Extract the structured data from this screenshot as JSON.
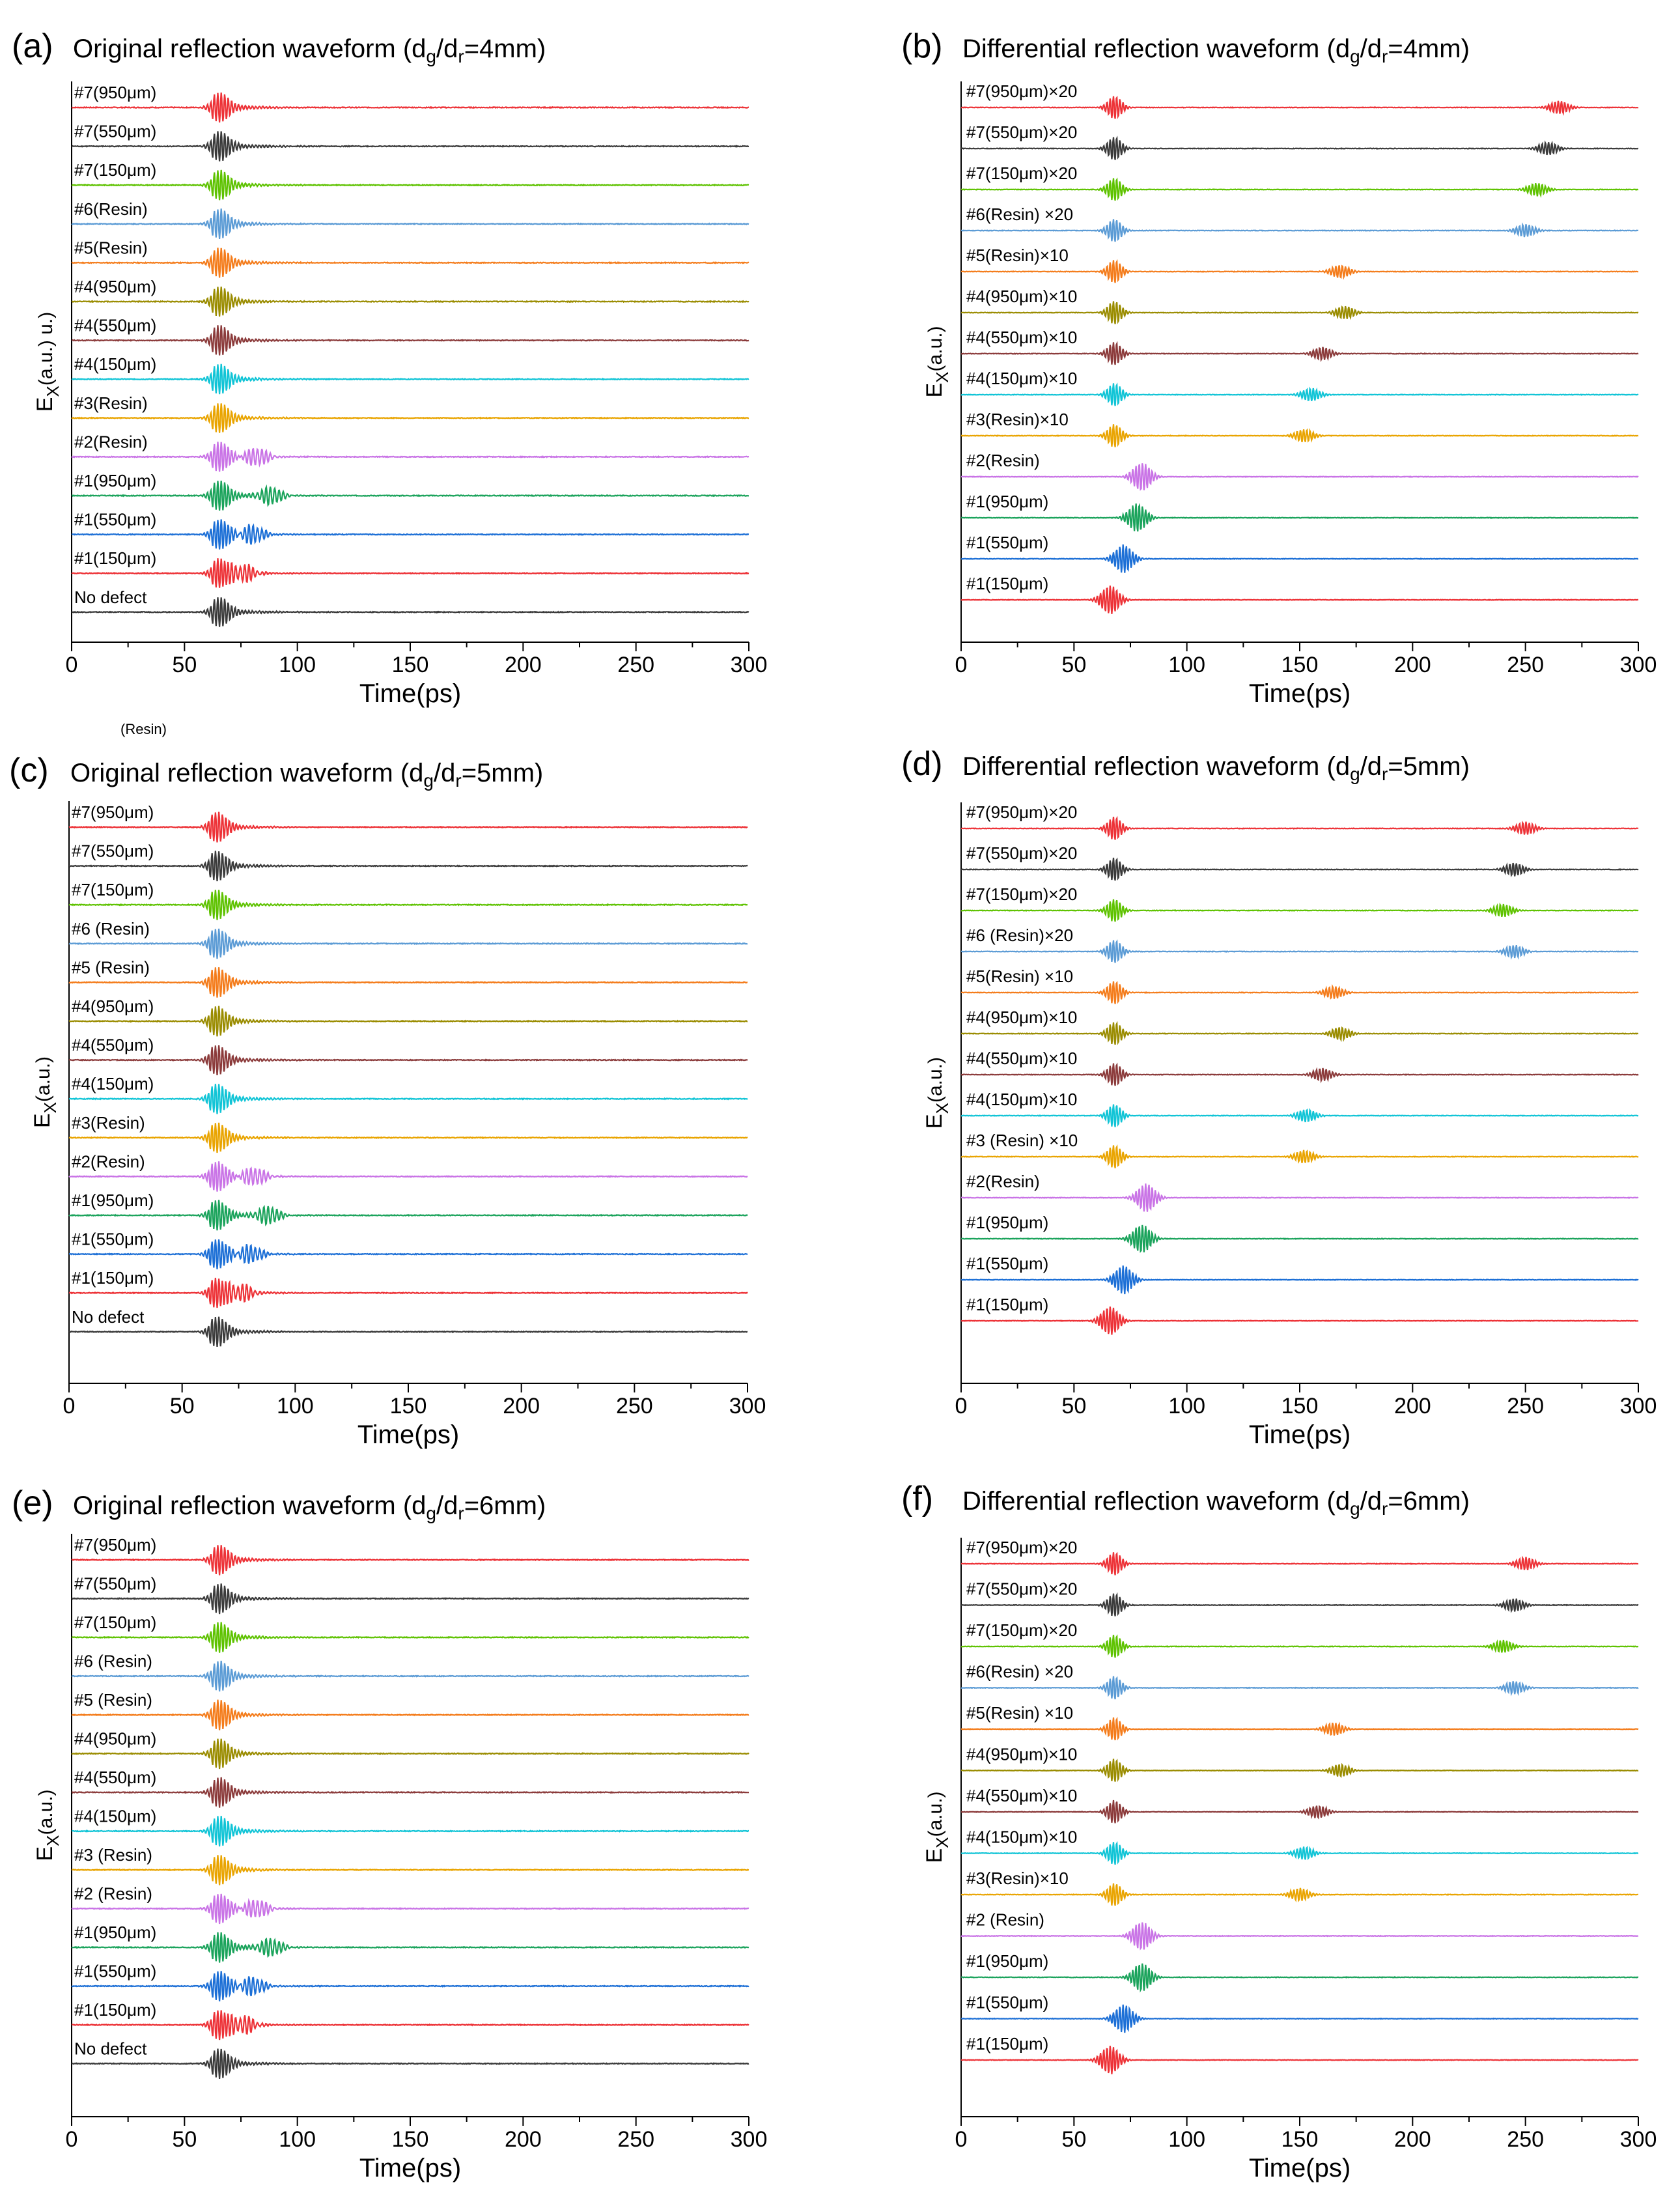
{
  "figure": {
    "x_axis_label": "Time(ps)",
    "y_axis_label_main": "E",
    "y_axis_label_sub": "X",
    "stray_label": "(Resin)"
  },
  "chart_data": [
    {
      "type": "line",
      "letter": "(a)",
      "kind": "orig",
      "title_pre": "Original reflection waveform (d",
      "title_sub1": "g",
      "title_mid": "/d",
      "title_sub2": "r",
      "title_post": "=4mm)",
      "ylabel_paren": "(a.u.) u.)",
      "xlabel": "Time(ps)",
      "xlim": [
        0,
        300
      ],
      "xticks": [
        0,
        50,
        100,
        150,
        200,
        250,
        300
      ],
      "series": [
        {
          "name": "#7(950μm)",
          "color": "#ed3237"
        },
        {
          "name": "#7(550μm)",
          "color": "#3a3a3a"
        },
        {
          "name": "#7(150μm)",
          "color": "#5ec200"
        },
        {
          "name": "#6(Resin)",
          "color": "#5b9bd5"
        },
        {
          "name": "#5(Resin)",
          "color": "#f47c1b"
        },
        {
          "name": "#4(950μm)",
          "color": "#9a8c00"
        },
        {
          "name": "#4(550μm)",
          "color": "#8b3a3a"
        },
        {
          "name": "#4(150μm)",
          "color": "#10c4d6"
        },
        {
          "name": "#3(Resin)",
          "color": "#e9a400"
        },
        {
          "name": "#2(Resin)",
          "color": "#c973e6"
        },
        {
          "name": "#1(950μm)",
          "color": "#1aa35b"
        },
        {
          "name": "#1(550μm)",
          "color": "#1c6fd6"
        },
        {
          "name": "#1(150μm)",
          "color": "#ed3237"
        },
        {
          "name": "No defect",
          "color": "#3a3a3a"
        }
      ],
      "echo_times_ps": [
        null,
        null,
        null,
        null,
        null,
        null,
        null,
        null,
        null,
        72,
        78,
        70,
        66,
        null
      ]
    },
    {
      "type": "line",
      "letter": "(b)",
      "kind": "diff",
      "title_pre": "Differential reflection waveform (d",
      "title_sub1": "g",
      "title_mid": "/d",
      "title_sub2": "r",
      "title_post": "=4mm)",
      "ylabel_paren": "(a.u.)",
      "xlabel": "Time(ps)",
      "xlim": [
        0,
        300
      ],
      "xticks": [
        0,
        50,
        100,
        150,
        200,
        250,
        300
      ],
      "series": [
        {
          "name": "#7(950μm)×20",
          "color": "#ed3237"
        },
        {
          "name": "#7(550μm)×20",
          "color": "#3a3a3a"
        },
        {
          "name": "#7(150μm)×20",
          "color": "#5ec200"
        },
        {
          "name": "#6(Resin) ×20",
          "color": "#5b9bd5"
        },
        {
          "name": "#5(Resin)×10",
          "color": "#f47c1b"
        },
        {
          "name": "#4(950μm)×10",
          "color": "#9a8c00"
        },
        {
          "name": "#4(550μm)×10",
          "color": "#8b3a3a"
        },
        {
          "name": "#4(150μm)×10",
          "color": "#10c4d6"
        },
        {
          "name": "#3(Resin)×10",
          "color": "#e9a400"
        },
        {
          "name": "#2(Resin)",
          "color": "#c973e6"
        },
        {
          "name": "#1(950μm)",
          "color": "#1aa35b"
        },
        {
          "name": "#1(550μm)",
          "color": "#1c6fd6"
        },
        {
          "name": "#1(150μm)",
          "color": "#ed3237"
        }
      ],
      "echo_times_ps": [
        265,
        260,
        255,
        250,
        168,
        170,
        160,
        155,
        152,
        80,
        78,
        72,
        66
      ]
    },
    {
      "type": "line",
      "letter": "(c)",
      "kind": "orig",
      "title_pre": "Original reflection waveform (d",
      "title_sub1": "g",
      "title_mid": "/d",
      "title_sub2": "r",
      "title_post": "=5mm)",
      "ylabel_paren": "(a.u.)",
      "xlabel": "Time(ps)",
      "xlim": [
        0,
        300
      ],
      "xticks": [
        0,
        50,
        100,
        150,
        200,
        250,
        300
      ],
      "series": [
        {
          "name": "#7(950μm)",
          "color": "#ed3237"
        },
        {
          "name": "#7(550μm)",
          "color": "#3a3a3a"
        },
        {
          "name": "#7(150μm)",
          "color": "#5ec200"
        },
        {
          "name": "#6 (Resin)",
          "color": "#5b9bd5"
        },
        {
          "name": "#5 (Resin)",
          "color": "#f47c1b"
        },
        {
          "name": "#4(950μm)",
          "color": "#9a8c00"
        },
        {
          "name": "#4(550μm)",
          "color": "#8b3a3a"
        },
        {
          "name": "#4(150μm)",
          "color": "#10c4d6"
        },
        {
          "name": "#3(Resin)",
          "color": "#e9a400"
        },
        {
          "name": "#2(Resin)",
          "color": "#c973e6"
        },
        {
          "name": "#1(950μm)",
          "color": "#1aa35b"
        },
        {
          "name": "#1(550μm)",
          "color": "#1c6fd6"
        },
        {
          "name": "#1(150μm)",
          "color": "#ed3237"
        },
        {
          "name": "No defect",
          "color": "#3a3a3a"
        }
      ],
      "echo_times_ps": [
        null,
        null,
        null,
        null,
        null,
        null,
        null,
        null,
        null,
        72,
        78,
        70,
        66,
        null
      ]
    },
    {
      "type": "line",
      "letter": "(d)",
      "kind": "diff",
      "title_pre": "Differential reflection waveform (d",
      "title_sub1": "g",
      "title_mid": "/d",
      "title_sub2": "r",
      "title_post": "=5mm)",
      "ylabel_paren": "(a.u.)",
      "xlabel": "Time(ps)",
      "xlim": [
        0,
        300
      ],
      "xticks": [
        0,
        50,
        100,
        150,
        200,
        250,
        300
      ],
      "series": [
        {
          "name": "#7(950μm)×20",
          "color": "#ed3237"
        },
        {
          "name": "#7(550μm)×20",
          "color": "#3a3a3a"
        },
        {
          "name": "#7(150μm)×20",
          "color": "#5ec200"
        },
        {
          "name": "#6 (Resin)×20",
          "color": "#5b9bd5"
        },
        {
          "name": "#5(Resin) ×10",
          "color": "#f47c1b"
        },
        {
          "name": "#4(950μm)×10",
          "color": "#9a8c00"
        },
        {
          "name": "#4(550μm)×10",
          "color": "#8b3a3a"
        },
        {
          "name": "#4(150μm)×10",
          "color": "#10c4d6"
        },
        {
          "name": "#3 (Resin) ×10",
          "color": "#e9a400"
        },
        {
          "name": "#2(Resin)",
          "color": "#c973e6"
        },
        {
          "name": "#1(950μm)",
          "color": "#1aa35b"
        },
        {
          "name": "#1(550μm)",
          "color": "#1c6fd6"
        },
        {
          "name": "#1(150μm)",
          "color": "#ed3237"
        }
      ],
      "echo_times_ps": [
        250,
        245,
        240,
        245,
        165,
        168,
        160,
        153,
        152,
        82,
        80,
        72,
        66
      ]
    },
    {
      "type": "line",
      "letter": "(e)",
      "kind": "orig",
      "title_pre": "Original reflection waveform (d",
      "title_sub1": "g",
      "title_mid": "/d",
      "title_sub2": "r",
      "title_post": "=6mm)",
      "ylabel_paren": "(a.u.)",
      "xlabel": "Time(ps)",
      "xlim": [
        0,
        300
      ],
      "xticks": [
        0,
        50,
        100,
        150,
        200,
        250,
        300
      ],
      "series": [
        {
          "name": "#7(950μm)",
          "color": "#ed3237"
        },
        {
          "name": "#7(550μm)",
          "color": "#3a3a3a"
        },
        {
          "name": "#7(150μm)",
          "color": "#5ec200"
        },
        {
          "name": "#6 (Resin)",
          "color": "#5b9bd5"
        },
        {
          "name": "#5 (Resin)",
          "color": "#f47c1b"
        },
        {
          "name": "#4(950μm)",
          "color": "#9a8c00"
        },
        {
          "name": "#4(550μm)",
          "color": "#8b3a3a"
        },
        {
          "name": "#4(150μm)",
          "color": "#10c4d6"
        },
        {
          "name": "#3 (Resin)",
          "color": "#e9a400"
        },
        {
          "name": "#2 (Resin)",
          "color": "#c973e6"
        },
        {
          "name": "#1(950μm)",
          "color": "#1aa35b"
        },
        {
          "name": "#1(550μm)",
          "color": "#1c6fd6"
        },
        {
          "name": "#1(150μm)",
          "color": "#ed3237"
        },
        {
          "name": "No defect",
          "color": "#3a3a3a"
        }
      ],
      "echo_times_ps": [
        null,
        null,
        null,
        null,
        null,
        null,
        null,
        null,
        null,
        72,
        78,
        70,
        66,
        null
      ]
    },
    {
      "type": "line",
      "letter": "(f)",
      "kind": "diff",
      "title_pre": "Differential reflection waveform (d",
      "title_sub1": "g",
      "title_mid": "/d",
      "title_sub2": "r",
      "title_post": "=6mm)",
      "ylabel_paren": "(a.u.)",
      "xlabel": "Time(ps)",
      "xlim": [
        0,
        300
      ],
      "xticks": [
        0,
        50,
        100,
        150,
        200,
        250,
        300
      ],
      "series": [
        {
          "name": "#7(950μm)×20",
          "color": "#ed3237"
        },
        {
          "name": "#7(550μm)×20",
          "color": "#3a3a3a"
        },
        {
          "name": "#7(150μm)×20",
          "color": "#5ec200"
        },
        {
          "name": "#6(Resin) ×20",
          "color": "#5b9bd5"
        },
        {
          "name": "#5(Resin)   ×10",
          "color": "#f47c1b"
        },
        {
          "name": "#4(950μm)×10",
          "color": "#9a8c00"
        },
        {
          "name": "#4(550μm)×10",
          "color": "#8b3a3a"
        },
        {
          "name": "#4(150μm)×10",
          "color": "#10c4d6"
        },
        {
          "name": "#3(Resin)×10",
          "color": "#e9a400"
        },
        {
          "name": "#2 (Resin)",
          "color": "#c973e6"
        },
        {
          "name": "#1(950μm)",
          "color": "#1aa35b"
        },
        {
          "name": "#1(550μm)",
          "color": "#1c6fd6"
        },
        {
          "name": "#1(150μm)",
          "color": "#ed3237"
        }
      ],
      "echo_times_ps": [
        250,
        245,
        240,
        245,
        165,
        168,
        158,
        152,
        150,
        80,
        80,
        72,
        66
      ]
    }
  ]
}
